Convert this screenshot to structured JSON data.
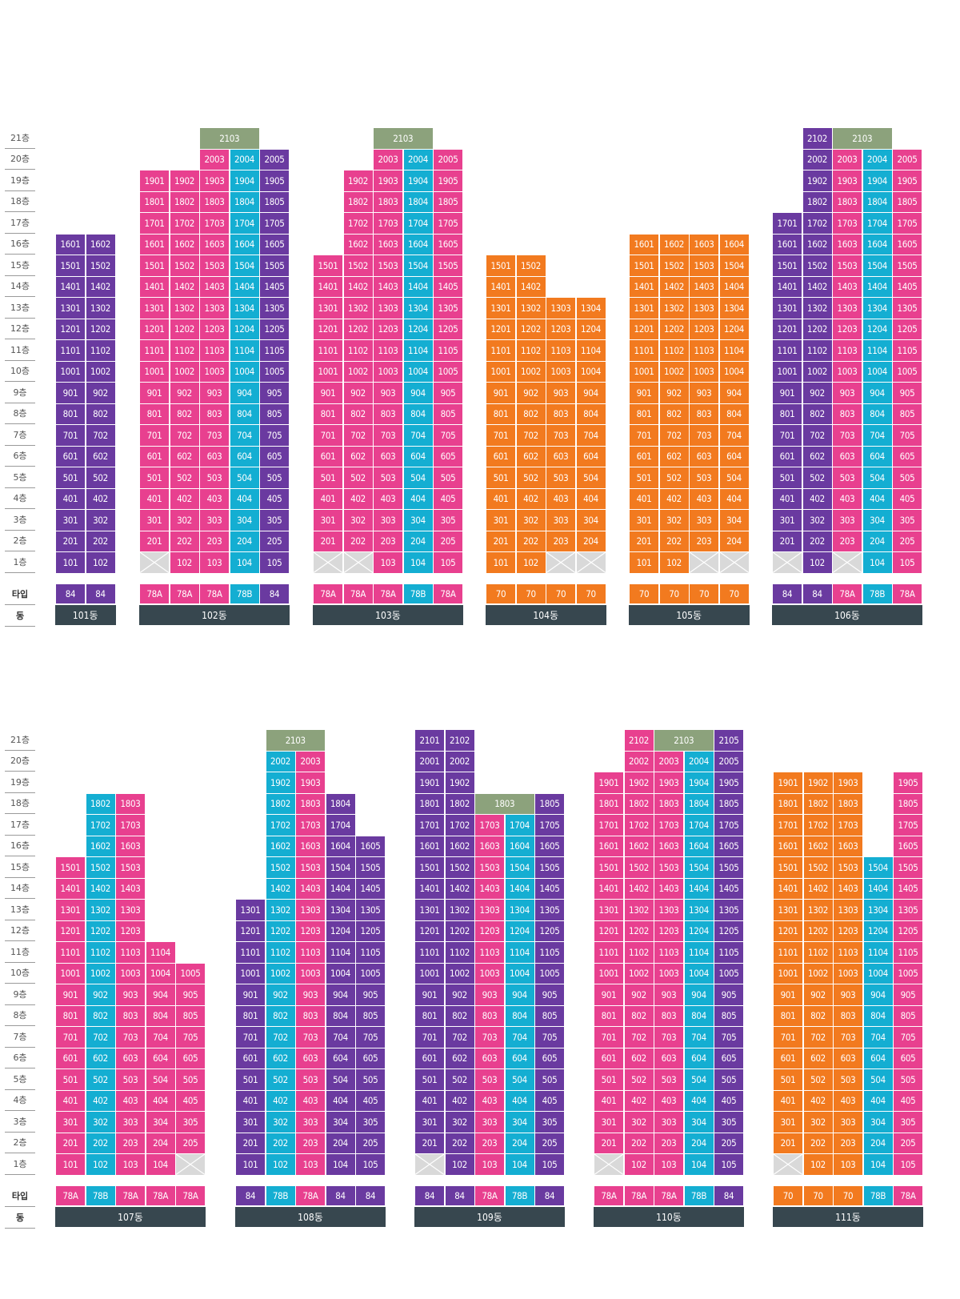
{
  "colors": {
    "84": "#6a3aa0",
    "78A": "#e8408f",
    "78B": "#14aed2",
    "70": "#f27a1f",
    "penthouse": "#8ca27c",
    "building_label_bg": "#37474f",
    "empty": "#d9d9d9"
  },
  "labels": {
    "type_row": "타입",
    "dong_row": "동"
  },
  "floors": [
    "21층",
    "20층",
    "19층",
    "18층",
    "17층",
    "16층",
    "15층",
    "14층",
    "13층",
    "12층",
    "11층",
    "10층",
    "9층",
    "8층",
    "7층",
    "6층",
    "5층",
    "4층",
    "3층",
    "2층",
    "1층"
  ],
  "sections": [
    {
      "buildings": [
        {
          "name": "101동",
          "cols": 2,
          "types": [
            "84",
            "84"
          ],
          "floors": [
            [
              1,
              2,
              101,
              102
            ],
            [
              2,
              16,
              "all"
            ]
          ]
        },
        {
          "name": "102동",
          "cols": 5,
          "types": [
            "78A",
            "78A",
            "78A",
            "78B",
            "84"
          ],
          "top": [
            [
              21,
              "2103",
              3,
              4
            ]
          ],
          "row20": [
            3,
            4,
            5
          ],
          "floors": [
            [
              1,
              "x",
              1
            ],
            [
              1,
              "x",
              0
            ],
            [
              2,
              19,
              "all"
            ]
          ],
          "f1empty": [
            1
          ]
        },
        {
          "name": "103동",
          "cols": 5,
          "types": [
            "78A",
            "78A",
            "78A",
            "78B",
            "78A"
          ],
          "top": [
            [
              21,
              "2103",
              3,
              4
            ]
          ]
        },
        {
          "name": "104동",
          "cols": 4,
          "types": [
            "70",
            "70",
            "70",
            "70"
          ]
        },
        {
          "name": "105동",
          "cols": 4,
          "types": [
            "70",
            "70",
            "70",
            "70"
          ]
        },
        {
          "name": "106동",
          "cols": 5,
          "types": [
            "84",
            "84",
            "78A",
            "78B",
            "78A"
          ]
        }
      ]
    },
    {
      "buildings": [
        {
          "name": "107동",
          "cols": 5,
          "types": [
            "78A",
            "78B",
            "78A",
            "78A",
            "78A"
          ]
        },
        {
          "name": "108동",
          "cols": 5,
          "types": [
            "84",
            "78B",
            "78A",
            "84",
            "84"
          ]
        },
        {
          "name": "109동",
          "cols": 5,
          "types": [
            "84",
            "84",
            "78A",
            "78B",
            "84"
          ]
        },
        {
          "name": "110동",
          "cols": 5,
          "types": [
            "78A",
            "78A",
            "78A",
            "78B",
            "84"
          ]
        },
        {
          "name": "111동",
          "cols": 5,
          "types": [
            "70",
            "70",
            "70",
            "78B",
            "78A"
          ]
        }
      ]
    }
  ],
  "units": {
    "101동": [
      [
        1,
        1,
        "101",
        "84"
      ],
      [
        1,
        2,
        "102",
        "84"
      ],
      [
        2,
        1,
        "201",
        "84"
      ],
      [
        2,
        2,
        "202",
        "84"
      ],
      [
        3,
        1,
        "301",
        "84"
      ],
      [
        3,
        2,
        "302",
        "84"
      ],
      [
        4,
        1,
        "401",
        "84"
      ],
      [
        4,
        2,
        "402",
        "84"
      ],
      [
        5,
        1,
        "501",
        "84"
      ],
      [
        5,
        2,
        "502",
        "84"
      ],
      [
        6,
        1,
        "601",
        "84"
      ],
      [
        6,
        2,
        "602",
        "84"
      ],
      [
        7,
        1,
        "701",
        "84"
      ],
      [
        7,
        2,
        "702",
        "84"
      ],
      [
        8,
        1,
        "801",
        "84"
      ],
      [
        8,
        2,
        "802",
        "84"
      ],
      [
        9,
        1,
        "901",
        "84"
      ],
      [
        9,
        2,
        "902",
        "84"
      ],
      [
        10,
        1,
        "1001",
        "84"
      ],
      [
        10,
        2,
        "1002",
        "84"
      ],
      [
        11,
        1,
        "1101",
        "84"
      ],
      [
        11,
        2,
        "1102",
        "84"
      ],
      [
        12,
        1,
        "1201",
        "84"
      ],
      [
        12,
        2,
        "1202",
        "84"
      ],
      [
        13,
        1,
        "1301",
        "84"
      ],
      [
        13,
        2,
        "1302",
        "84"
      ],
      [
        14,
        1,
        "1401",
        "84"
      ],
      [
        14,
        2,
        "1402",
        "84"
      ],
      [
        15,
        1,
        "1501",
        "84"
      ],
      [
        15,
        2,
        "1502",
        "84"
      ],
      [
        16,
        1,
        "1601",
        "84"
      ],
      [
        16,
        2,
        "1602",
        "84"
      ]
    ]
  },
  "grid": {
    "101동": {
      "tiles": "1:1-2;2-16:1-2"
    },
    "102동": {
      "tiles": "1:2-5;2-19:1-5;20:3-5;21p:3-4",
      "empty1": [
        1
      ]
    },
    "103동": {
      "tiles": "1:3-5;2-14:1-5;15:1-5;16-19:2-5;20:3-5;21p:3-4",
      "empty1": [
        1,
        2
      ]
    },
    "104동": {
      "tiles": "1:1-2;2-13:1-4;14-15:1-2",
      "empty1": [
        3,
        4
      ]
    },
    "105동": {
      "tiles": "1:1-2;2-16:1-4",
      "empty1": [
        3,
        4
      ]
    },
    "106동": {
      "tiles": "1:2,4-5;2-17:1-5;18-20:2-5;21:2;21p:3-4",
      "empty1": [
        1,
        3
      ]
    },
    "107동": {
      "tiles": "1:1-4;2-10:1-5;11:1-4;12-15:1-3;16-18:2-3",
      "empty1": [
        5
      ]
    },
    "108동": {
      "tiles": "1-13:1-5;14-16:2-5;17-18:2-4;19-20:2-3;21p:2-3"
    },
    "109동": {
      "tiles": "1:2-5;2-17:1-5;18:1-2,5;18p:3-4;19-21:1-2",
      "empty1": [
        1
      ]
    },
    "110동": {
      "tiles": "1:2-5;2-19:1-5;20:2-5;21:2,5;21p:3-4",
      "empty1": [
        1
      ]
    },
    "111동": {
      "tiles": "1:2-5;2-15:1-5;16-19:1-3,5",
      "empty1": [
        1
      ]
    }
  },
  "penthouse_labels": {
    "102동": "2103",
    "103동": "2103",
    "106동": "2103",
    "108동": "2103",
    "109동": "1803",
    "110동": "2103"
  }
}
